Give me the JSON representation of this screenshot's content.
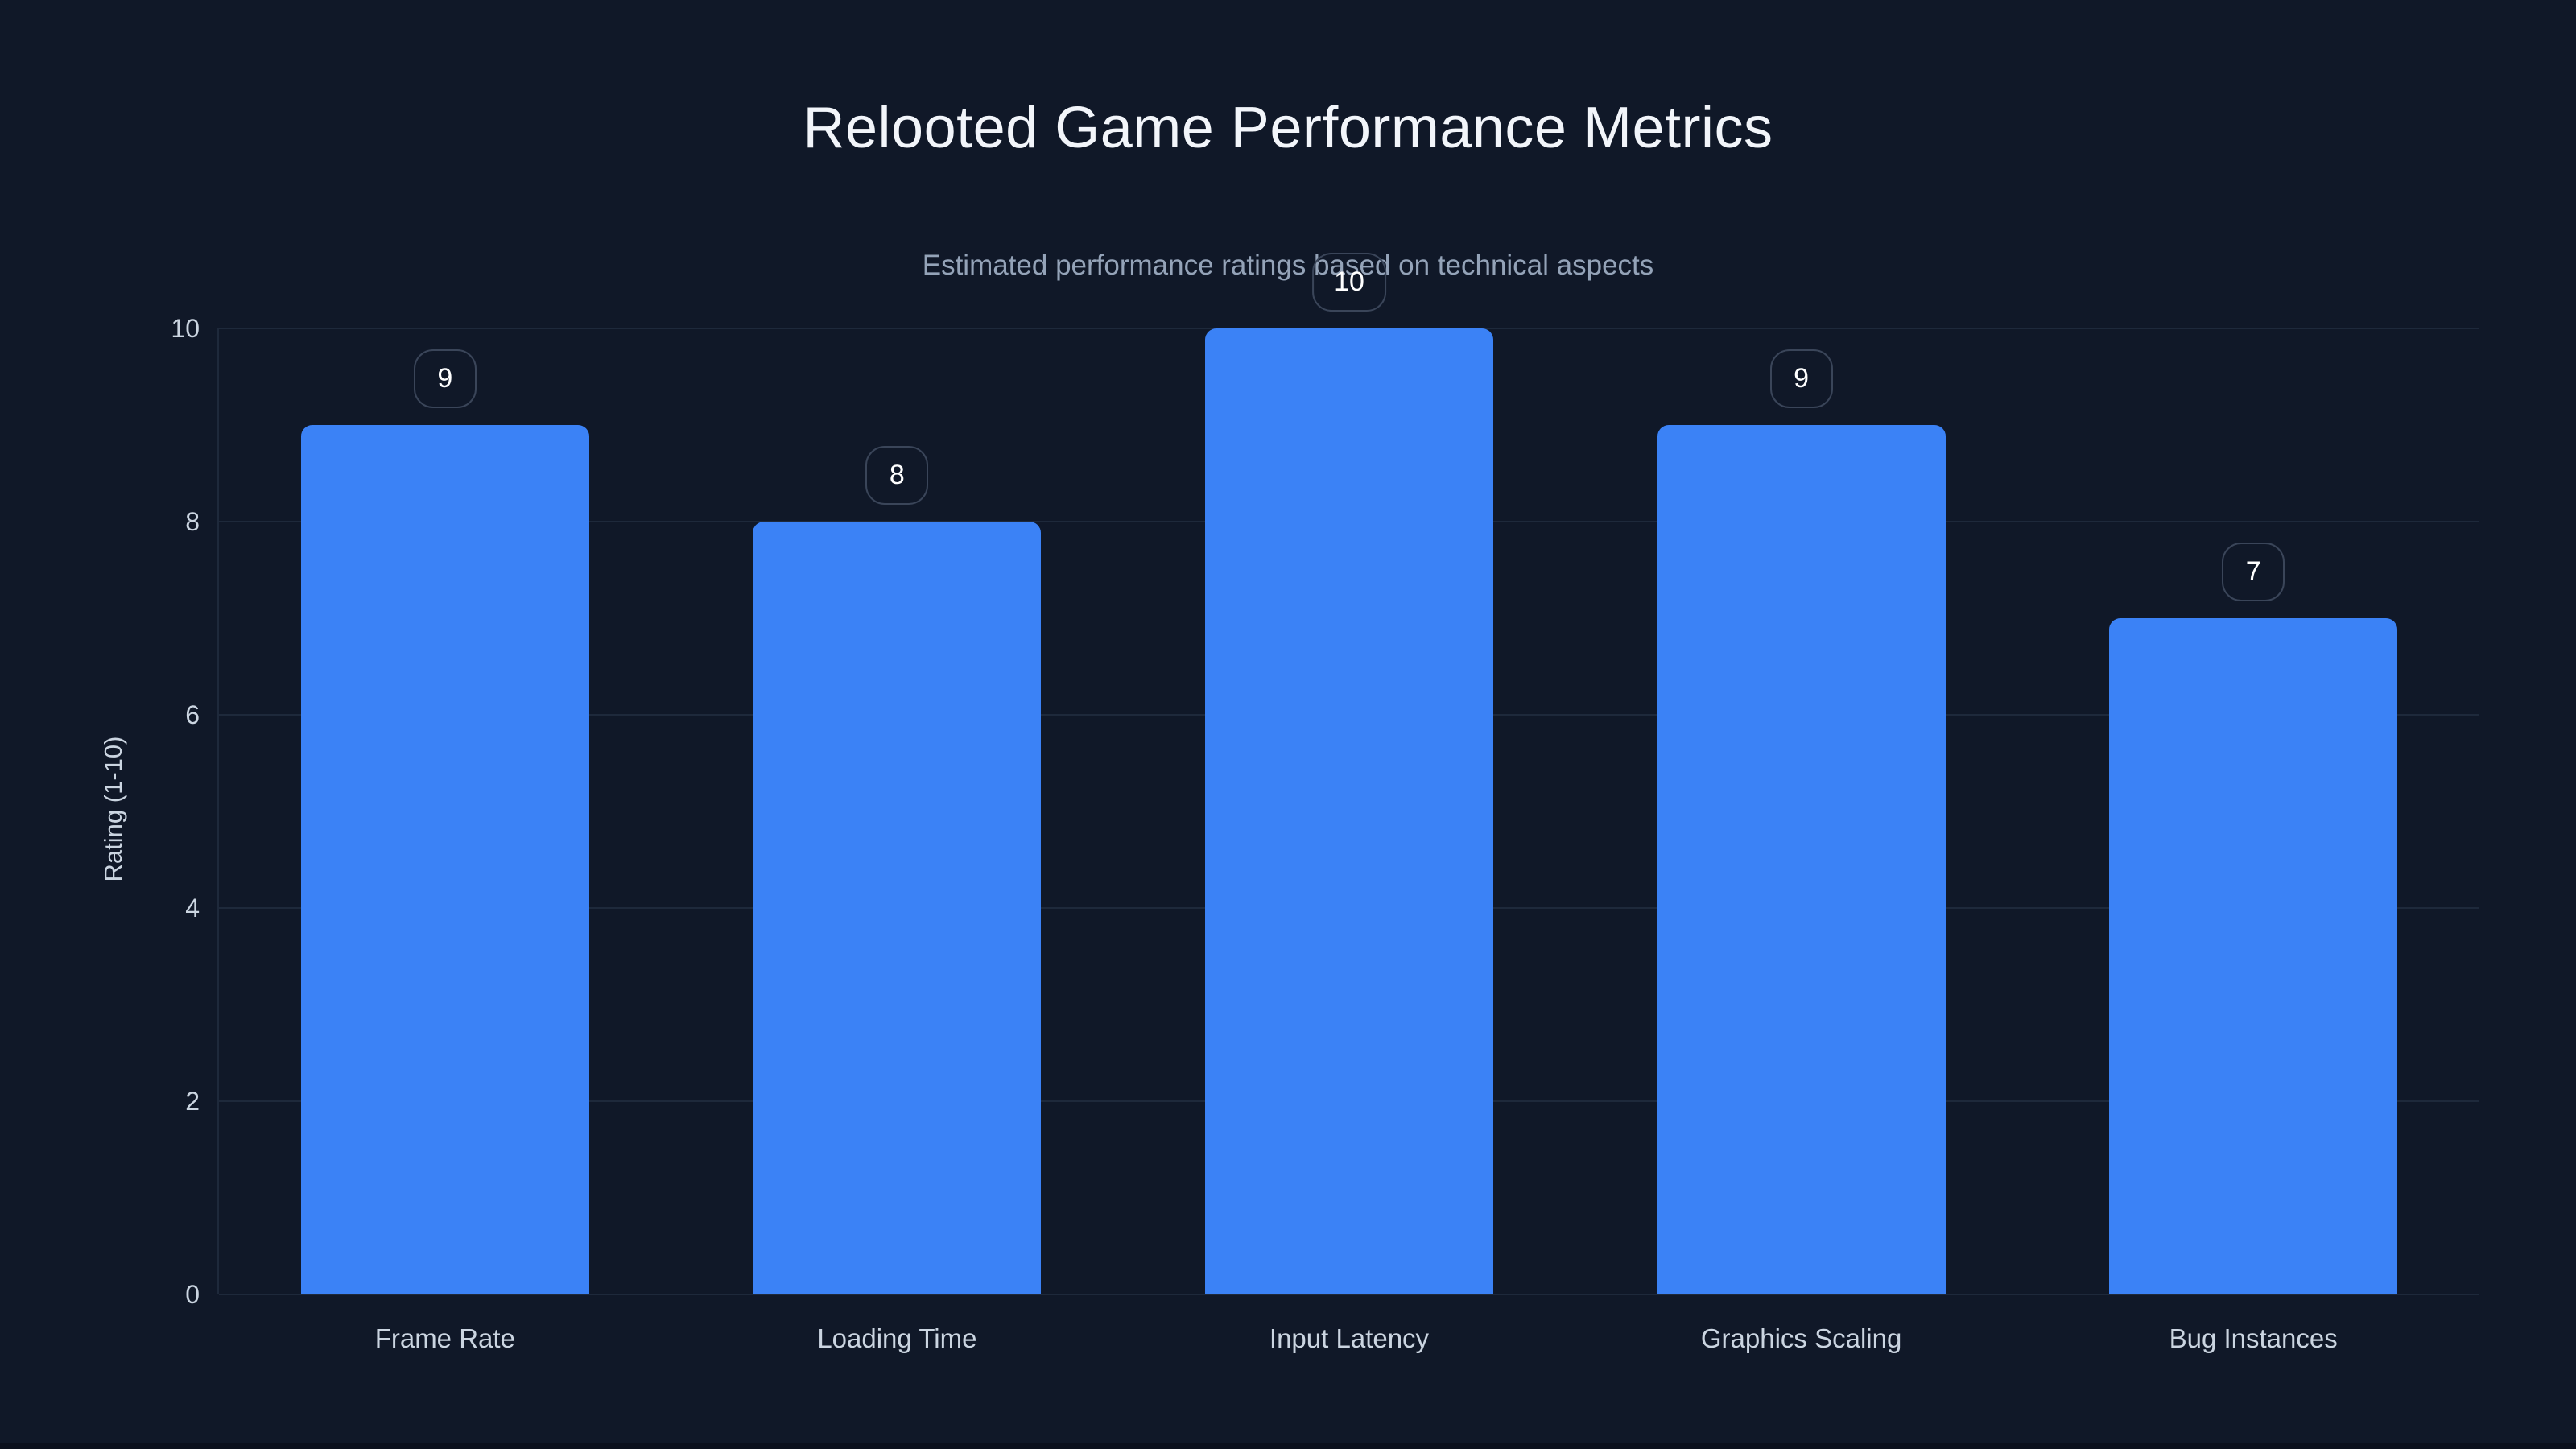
{
  "theme": {
    "background": "#101828",
    "title_color": "#f2f5fa",
    "subtitle_color": "#94a3b8",
    "axis_text_color": "#cbd5e1",
    "gridline_color": "#1e293b",
    "bar_color": "#3b82f6",
    "badge_border_color": "#3a4559",
    "badge_text_color": "#ffffff",
    "bottom_strip_color": "#0b101d"
  },
  "chart_data": {
    "type": "bar",
    "title": "Relooted Game Performance Metrics",
    "subtitle": "Estimated performance ratings based on technical aspects",
    "categories": [
      "Frame Rate",
      "Loading Time",
      "Input Latency",
      "Graphics Scaling",
      "Bug Instances"
    ],
    "values": [
      9,
      8,
      10,
      9,
      7
    ],
    "data_labels": [
      "9",
      "8",
      "10",
      "9",
      "7"
    ],
    "xlabel": "",
    "ylabel": "Rating (1-10)",
    "ylim": [
      0,
      10
    ],
    "yticks": [
      0,
      2,
      4,
      6,
      8,
      10
    ],
    "grid": true,
    "legend_position": "none",
    "bar_corner_radius_px": 14
  }
}
